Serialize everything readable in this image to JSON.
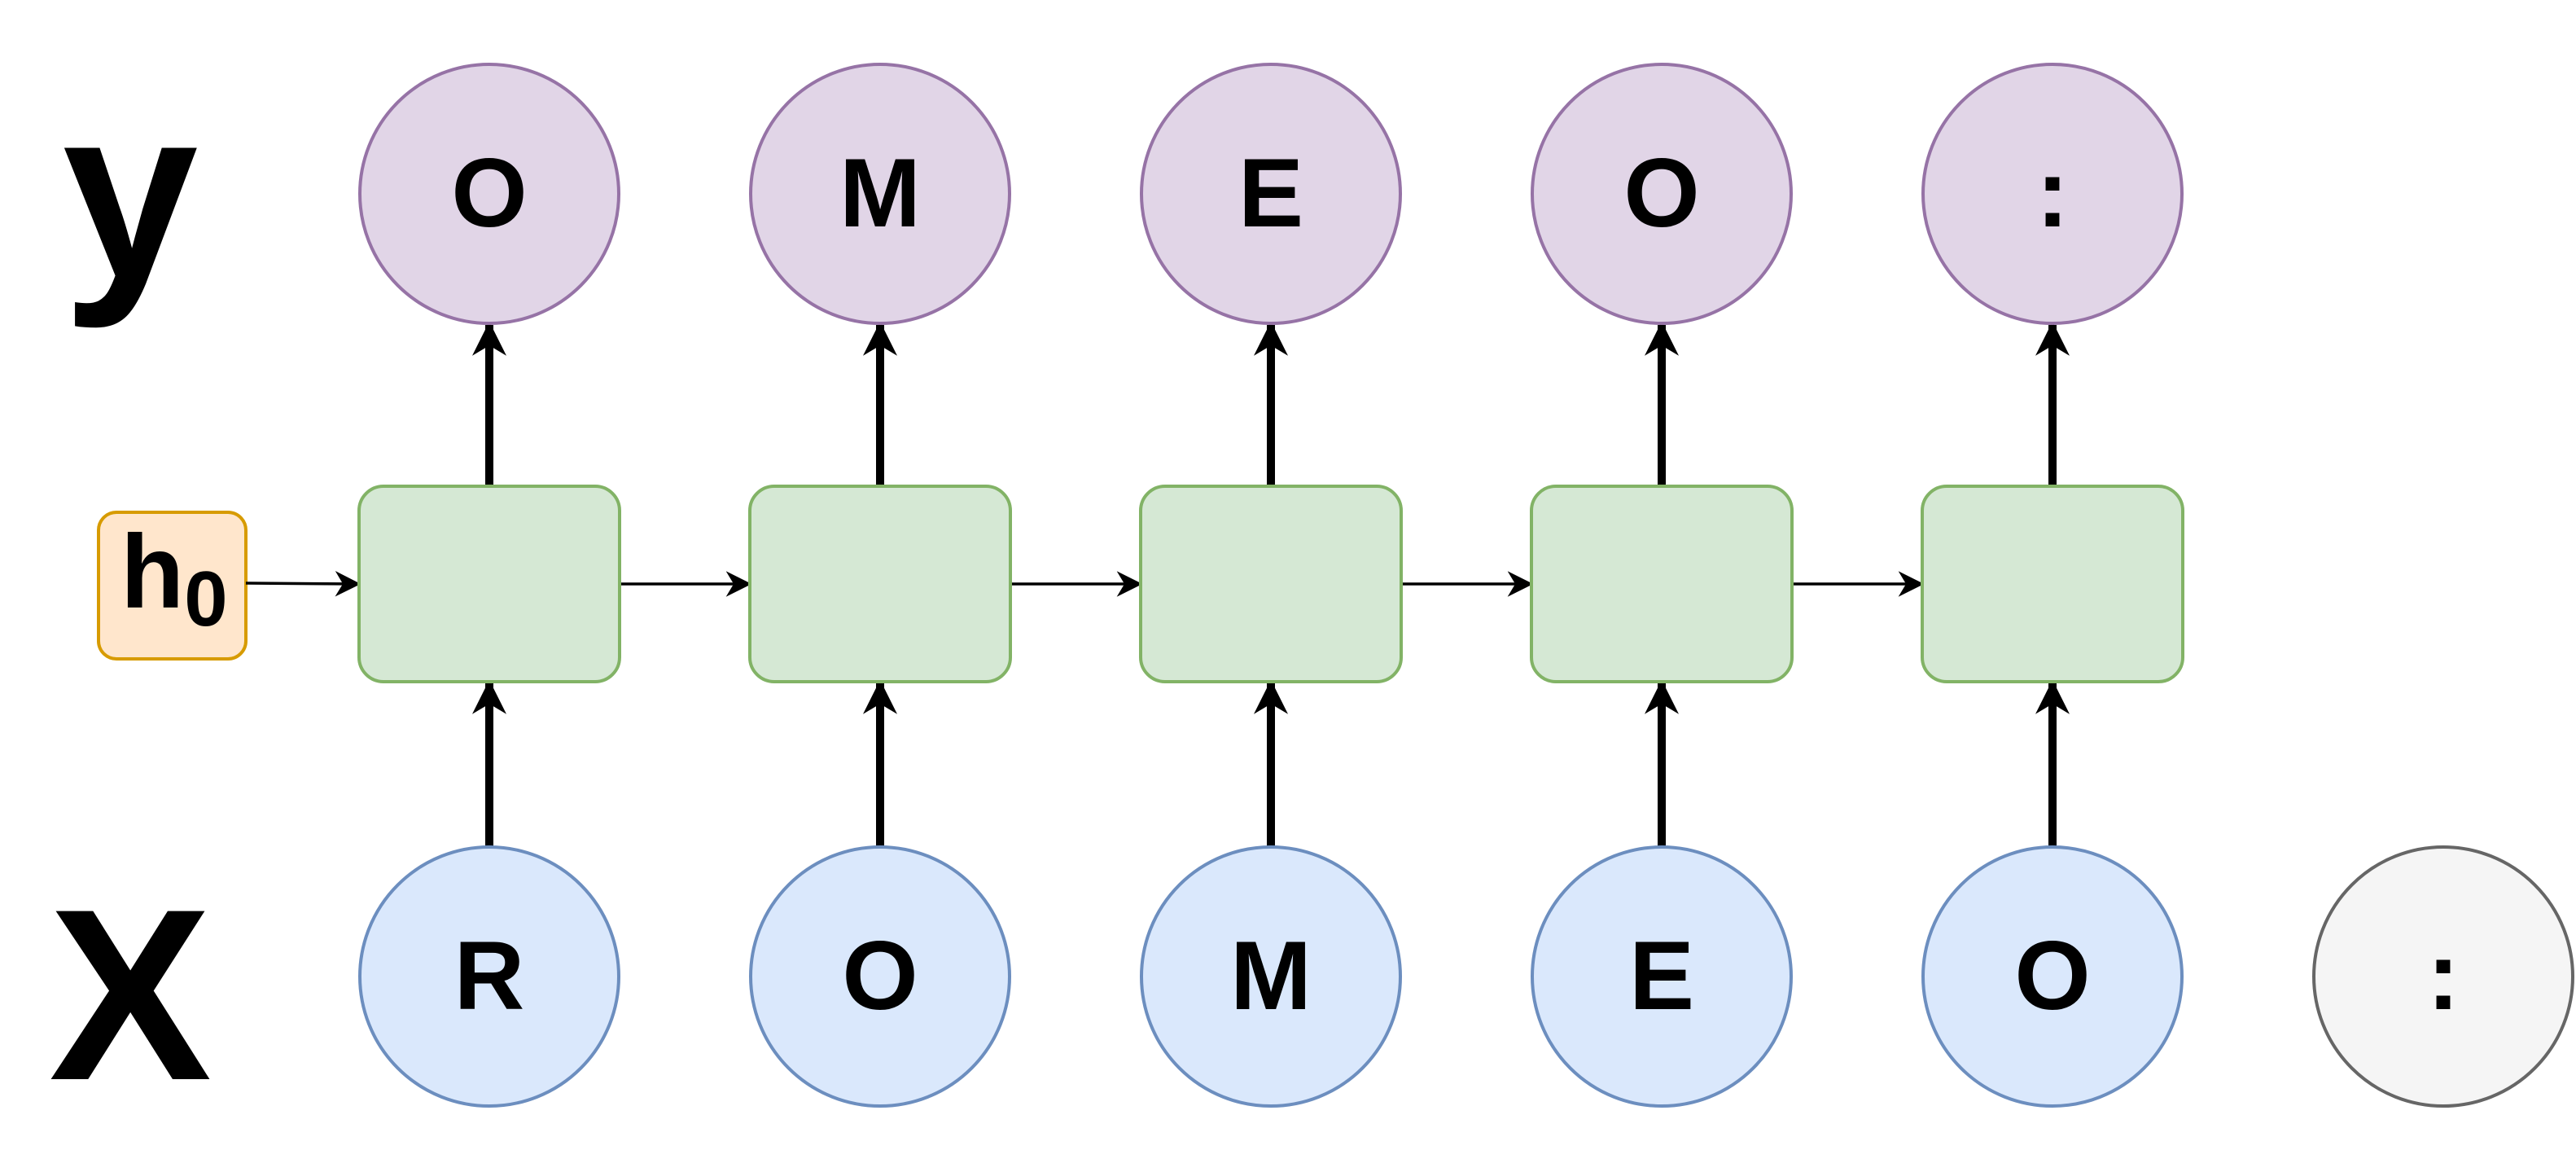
{
  "rows": {
    "output_label": "y",
    "input_label": "X",
    "hidden_label": {
      "main": "h",
      "sub": "0"
    }
  },
  "outputs": [
    "O",
    "M",
    "E",
    "O",
    ":"
  ],
  "inputs": [
    "R",
    "O",
    "M",
    "E",
    "O"
  ],
  "extra_input": ":",
  "colors": {
    "output_fill": "#e1d5e7",
    "output_stroke": "#9673a6",
    "cell_fill": "#d5e8d4",
    "cell_stroke": "#82b366",
    "input_fill": "#dae8fc",
    "input_stroke": "#6c8ebf",
    "extra_fill": "#f5f5f5",
    "extra_stroke": "#666666",
    "h0_fill": "#ffe6cc",
    "h0_stroke": "#d79b00",
    "arrow": "#000000"
  }
}
